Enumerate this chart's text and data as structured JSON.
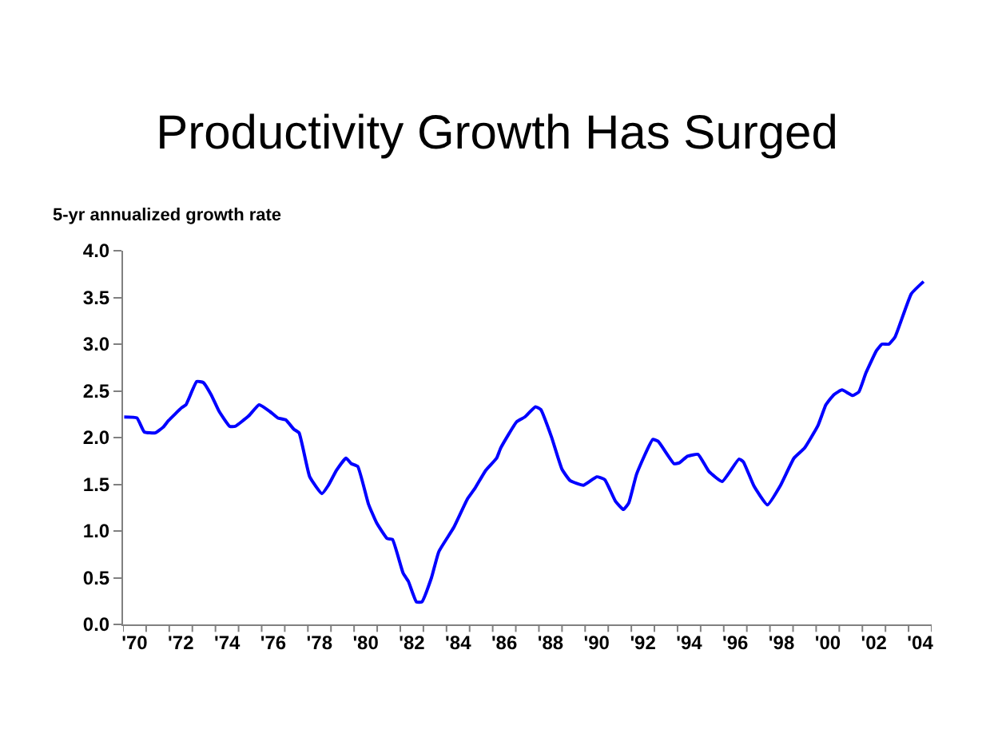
{
  "chart_data": {
    "type": "line",
    "title": "Productivity Growth Has Surged",
    "ylabel": "5-yr annualized growth rate",
    "x": [
      1969.55,
      1970.1,
      1970.42,
      1970.89,
      1971.23,
      1971.46,
      1972.04,
      1972.22,
      1972.69,
      1972.97,
      1973.31,
      1973.66,
      1974.12,
      1974.35,
      1974.93,
      1975.39,
      1975.85,
      1976.2,
      1976.54,
      1976.89,
      1977.12,
      1977.58,
      1978.11,
      1978.39,
      1978.74,
      1979.15,
      1979.38,
      1979.66,
      1980.12,
      1980.47,
      1980.93,
      1981.16,
      1981.62,
      1981.85,
      1982.2,
      1982.43,
      1982.85,
      1983.17,
      1983.82,
      1984.4,
      1984.74,
      1985.2,
      1985.67,
      1985.85,
      1986.54,
      1986.89,
      1987.35,
      1987.58,
      1988.04,
      1988.5,
      1988.85,
      1989.43,
      1990.0,
      1990.35,
      1990.81,
      1991.16,
      1991.39,
      1991.73,
      1992.43,
      1992.66,
      1993.35,
      1993.58,
      1993.93,
      1994.39,
      1994.85,
      1995.43,
      1996.16,
      1996.35,
      1996.81,
      1997.39,
      1997.96,
      1998.54,
      1999.0,
      1999.58,
      1999.92,
      2000.27,
      2000.62,
      2001.08,
      2001.35,
      2001.65,
      2002.11,
      2002.35,
      2002.65,
      2002.92,
      2003.62,
      2004.15
    ],
    "values": [
      2.22,
      2.21,
      2.06,
      2.05,
      2.11,
      2.18,
      2.32,
      2.35,
      2.6,
      2.59,
      2.46,
      2.28,
      2.12,
      2.12,
      2.23,
      2.35,
      2.28,
      2.21,
      2.19,
      2.09,
      2.05,
      1.58,
      1.4,
      1.49,
      1.65,
      1.78,
      1.72,
      1.69,
      1.29,
      1.09,
      0.92,
      0.91,
      0.55,
      0.46,
      0.24,
      0.24,
      0.5,
      0.78,
      1.04,
      1.34,
      1.46,
      1.65,
      1.78,
      1.89,
      2.17,
      2.22,
      2.33,
      2.3,
      2.01,
      1.66,
      1.54,
      1.49,
      1.58,
      1.55,
      1.32,
      1.23,
      1.3,
      1.61,
      1.98,
      1.96,
      1.72,
      1.73,
      1.8,
      1.82,
      1.64,
      1.53,
      1.77,
      1.74,
      1.48,
      1.28,
      1.49,
      1.78,
      1.89,
      2.13,
      2.35,
      2.46,
      2.51,
      2.45,
      2.49,
      2.69,
      2.93,
      3.0,
      3.0,
      3.08,
      3.54,
      3.67
    ],
    "color": "#0000ff",
    "line_style": "solid",
    "marker": "none",
    "xlim": [
      1969.5,
      2004.5
    ],
    "xticks": [
      {
        "value": 1969.5,
        "label": null
      },
      {
        "value": 1970.5,
        "label": null
      },
      {
        "value": 1971.5,
        "label": null
      },
      {
        "value": 1972.5,
        "label": null
      },
      {
        "value": 1973.5,
        "label": null
      },
      {
        "value": 1974.5,
        "label": null
      },
      {
        "value": 1975.5,
        "label": null
      },
      {
        "value": 1976.5,
        "label": null
      },
      {
        "value": 1977.5,
        "label": null
      },
      {
        "value": 1978.5,
        "label": null
      },
      {
        "value": 1979.5,
        "label": null
      },
      {
        "value": 1980.5,
        "label": null
      },
      {
        "value": 1981.5,
        "label": null
      },
      {
        "value": 1982.5,
        "label": null
      },
      {
        "value": 1983.5,
        "label": null
      },
      {
        "value": 1984.5,
        "label": null
      },
      {
        "value": 1985.5,
        "label": null
      },
      {
        "value": 1986.5,
        "label": null
      },
      {
        "value": 1987.5,
        "label": null
      },
      {
        "value": 1988.5,
        "label": null
      },
      {
        "value": 1989.5,
        "label": null
      },
      {
        "value": 1990.5,
        "label": null
      },
      {
        "value": 1991.5,
        "label": null
      },
      {
        "value": 1992.5,
        "label": null
      },
      {
        "value": 1993.5,
        "label": null
      },
      {
        "value": 1994.5,
        "label": null
      },
      {
        "value": 1995.5,
        "label": null
      },
      {
        "value": 1996.5,
        "label": null
      },
      {
        "value": 1997.5,
        "label": null
      },
      {
        "value": 1998.5,
        "label": null
      },
      {
        "value": 1999.5,
        "label": null
      },
      {
        "value": 2000.5,
        "label": null
      },
      {
        "value": 2001.5,
        "label": null
      },
      {
        "value": 2002.5,
        "label": null
      },
      {
        "value": 2003.5,
        "label": null
      },
      {
        "value": 2004.5,
        "label": null
      },
      {
        "value": 1970,
        "label": "'70"
      },
      {
        "value": 1972,
        "label": "'72"
      },
      {
        "value": 1974,
        "label": "'74"
      },
      {
        "value": 1976,
        "label": "'76"
      },
      {
        "value": 1978,
        "label": "'78"
      },
      {
        "value": 1980,
        "label": "'80"
      },
      {
        "value": 1982,
        "label": "'82"
      },
      {
        "value": 1984,
        "label": "'84"
      },
      {
        "value": 1986,
        "label": "'86"
      },
      {
        "value": 1988,
        "label": "'88"
      },
      {
        "value": 1990,
        "label": "'90"
      },
      {
        "value": 1992,
        "label": "'92"
      },
      {
        "value": 1994,
        "label": "'94"
      },
      {
        "value": 1996,
        "label": "'96"
      },
      {
        "value": 1998,
        "label": "'98"
      },
      {
        "value": 2000,
        "label": "'00"
      },
      {
        "value": 2002,
        "label": "'02"
      },
      {
        "value": 2004,
        "label": "'04"
      }
    ],
    "ylim": [
      0,
      4
    ],
    "yticks": [
      {
        "value": 0,
        "label": "0.0"
      },
      {
        "value": 0.5,
        "label": "0.5"
      },
      {
        "value": 1,
        "label": "1.0"
      },
      {
        "value": 1.5,
        "label": "1.5"
      },
      {
        "value": 2,
        "label": "2.0"
      },
      {
        "value": 2.5,
        "label": "2.5"
      },
      {
        "value": 3,
        "label": "3.0"
      },
      {
        "value": 3.5,
        "label": "3.5"
      },
      {
        "value": 4,
        "label": "4.0"
      }
    ]
  }
}
